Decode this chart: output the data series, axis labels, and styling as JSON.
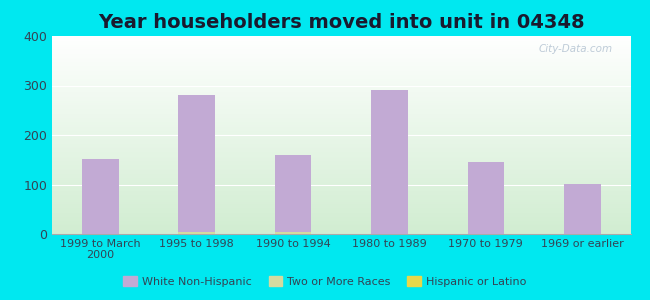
{
  "title": "Year householders moved into unit in 04348",
  "categories": [
    "1999 to March\n2000",
    "1995 to 1998",
    "1990 to 1994",
    "1980 to 1989",
    "1970 to 1979",
    "1969 or earlier"
  ],
  "white_non_hispanic": [
    152,
    280,
    160,
    290,
    145,
    102
  ],
  "two_or_more_races": [
    0,
    5,
    5,
    0,
    0,
    0
  ],
  "hispanic_or_latino": [
    0,
    0,
    0,
    0,
    0,
    0
  ],
  "bar_color_white": "#c2aad4",
  "bar_color_two": "#d4dba0",
  "bar_color_hispanic": "#f0e060",
  "background_outer": "#00e8f0",
  "ylim": [
    0,
    400
  ],
  "yticks": [
    0,
    100,
    200,
    300,
    400
  ],
  "title_fontsize": 14,
  "legend_color_white": "#c2aad4",
  "legend_color_two": "#d4dba0",
  "legend_color_hispanic": "#e8d84a",
  "watermark": "City-Data.com",
  "bg_top": "#ffffff",
  "bg_bottom": "#d0ecd0"
}
